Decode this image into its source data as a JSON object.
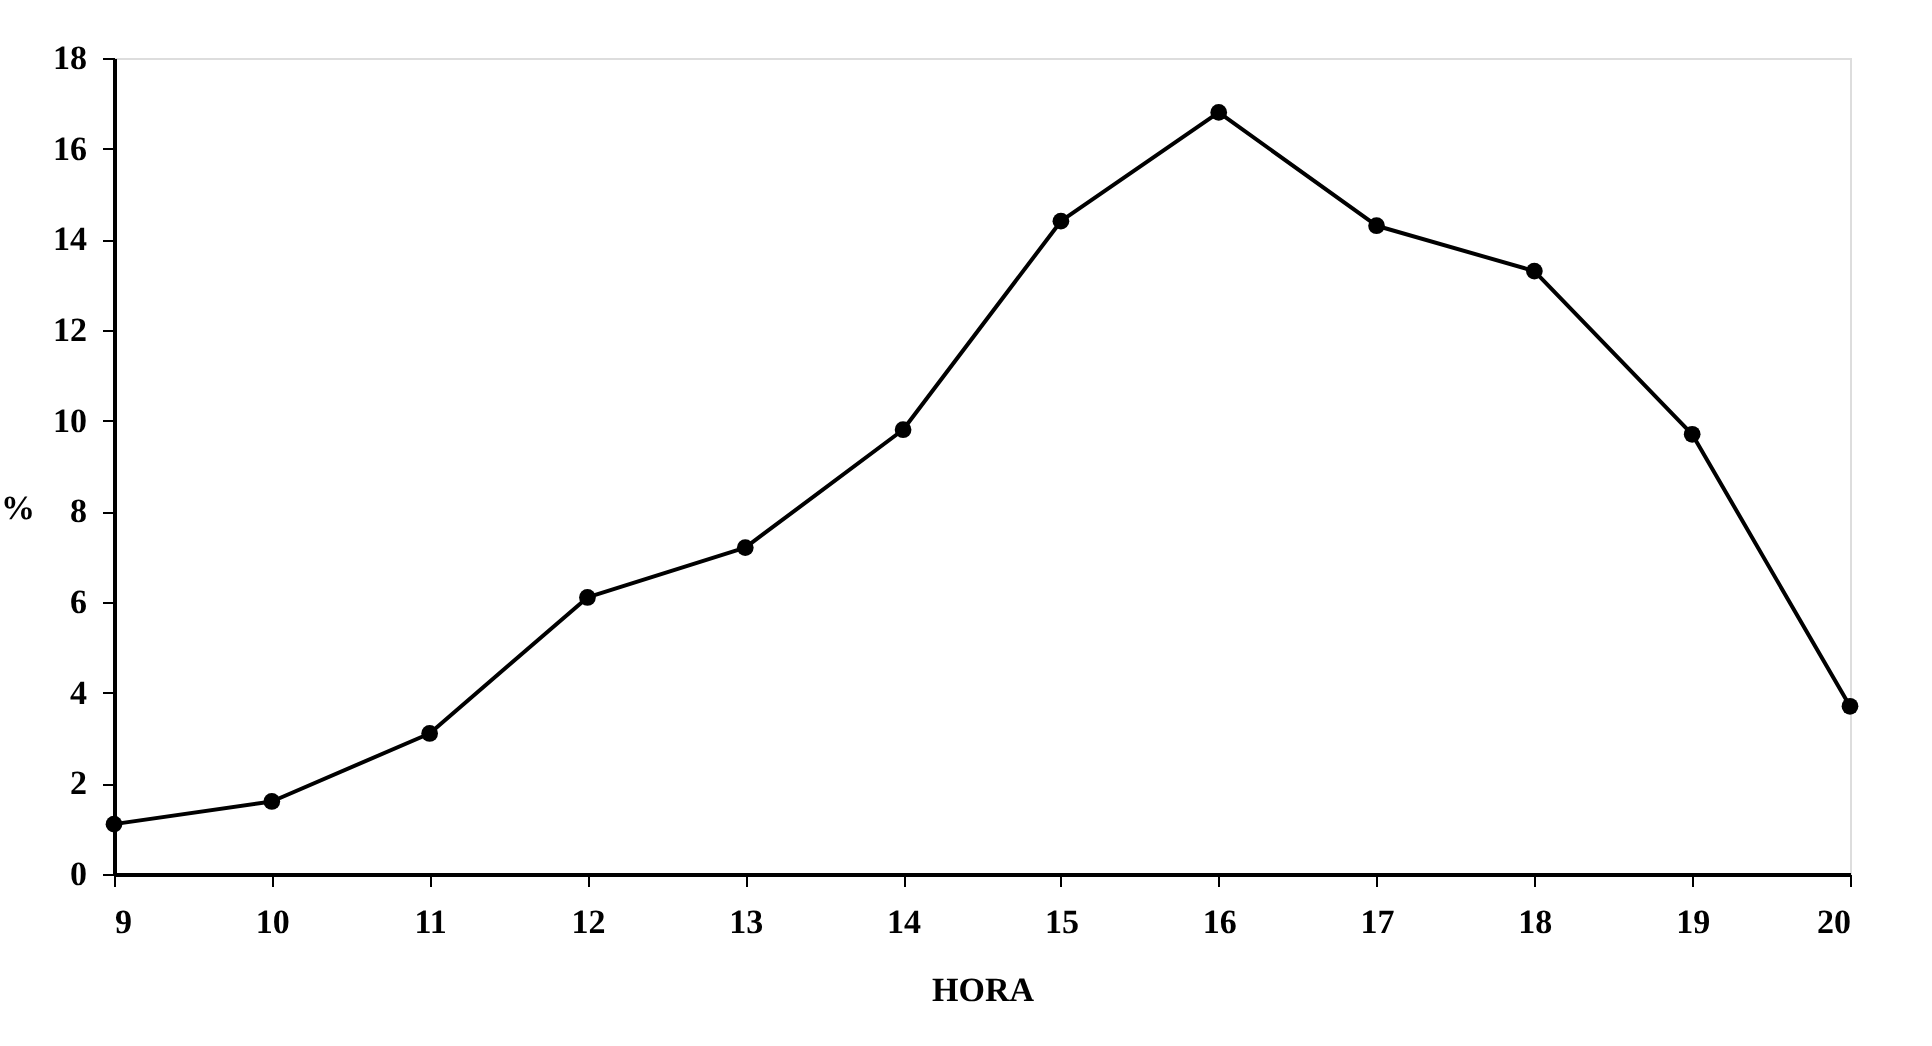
{
  "chart_data": {
    "type": "line",
    "xlabel": "HORA",
    "ylabel": "%",
    "x": [
      9,
      10,
      11,
      12,
      13,
      14,
      15,
      16,
      17,
      18,
      19,
      20
    ],
    "series": [
      {
        "color": "#000000",
        "values": [
          1.1,
          1.6,
          3.1,
          6.1,
          7.2,
          9.8,
          14.4,
          16.8,
          14.3,
          13.3,
          9.7,
          3.7
        ]
      }
    ],
    "xlim": [
      9,
      20
    ],
    "xticks": [
      9,
      10,
      11,
      12,
      13,
      14,
      15,
      16,
      17,
      18,
      19,
      20
    ],
    "ylim": [
      0,
      18
    ],
    "yticks": [
      0,
      2,
      4,
      6,
      8,
      10,
      12,
      14,
      16,
      18
    ],
    "grid": false,
    "marker": "circle",
    "line_style": "solid"
  }
}
